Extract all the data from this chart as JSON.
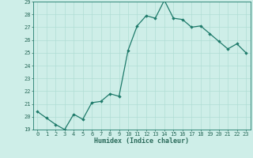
{
  "x": [
    0,
    1,
    2,
    3,
    4,
    5,
    6,
    7,
    8,
    9,
    10,
    11,
    12,
    13,
    14,
    15,
    16,
    17,
    18,
    19,
    20,
    21,
    22,
    23
  ],
  "y": [
    20.4,
    19.9,
    19.4,
    19.0,
    20.2,
    19.8,
    21.1,
    21.2,
    21.8,
    21.6,
    25.2,
    27.1,
    27.9,
    27.7,
    29.1,
    27.7,
    27.6,
    27.0,
    27.1,
    26.5,
    25.9,
    25.3,
    25.7,
    25.0
  ],
  "xlabel": "Humidex (Indice chaleur)",
  "ylim": [
    19,
    29
  ],
  "xlim_min": -0.5,
  "xlim_max": 23.5,
  "yticks": [
    19,
    20,
    21,
    22,
    23,
    24,
    25,
    26,
    27,
    28,
    29
  ],
  "xticks": [
    0,
    1,
    2,
    3,
    4,
    5,
    6,
    7,
    8,
    9,
    10,
    11,
    12,
    13,
    14,
    15,
    16,
    17,
    18,
    19,
    20,
    21,
    22,
    23
  ],
  "line_color": "#1e7a6a",
  "bg_color": "#ceeee8",
  "grid_color": "#b0ddd5",
  "font_color": "#2a6a5a",
  "label_fontsize": 5.5,
  "tick_fontsize": 5.0,
  "xlabel_fontsize": 6.0
}
